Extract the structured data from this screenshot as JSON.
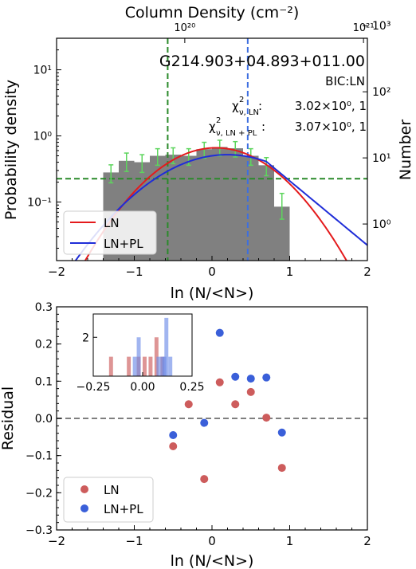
{
  "chart_data": [
    {
      "type": "bar",
      "panel": "top",
      "top_axis_label": "Column Density (cm⁻²)",
      "top_ticks": [
        "10²⁰",
        "10²¹"
      ],
      "xlabel": "ln (N/<N>)",
      "ylabel": "Probability density",
      "ylabel_right": "Number",
      "xlim": [
        -2,
        2
      ],
      "ylim_log": [
        0.013,
        30
      ],
      "x_ticks": [
        -2,
        -1,
        0,
        1,
        2
      ],
      "y_ticks": [
        "10⁻¹",
        "10⁰",
        "10¹"
      ],
      "y_tick_values": [
        0.1,
        1,
        10
      ],
      "right_ticks": [
        "10⁰",
        "10¹",
        "10²",
        "10³"
      ],
      "right_tick_values": [
        1,
        10,
        100,
        1000
      ],
      "right_scale": 0.0465,
      "annotations": {
        "source": "G214.903+04.893+011.00",
        "bic": "BIC:LN",
        "chi_ln": "3.02×10⁰, 1",
        "chi_lnpl": "3.07×10⁰, 1"
      },
      "histogram": {
        "edges": [
          -1.4,
          -1.2,
          -1.0,
          -0.8,
          -0.6,
          -0.4,
          -0.2,
          0.0,
          0.2,
          0.4,
          0.6,
          0.8,
          1.0
        ],
        "values": [
          0.28,
          0.42,
          0.4,
          0.5,
          0.52,
          0.5,
          0.63,
          0.68,
          0.65,
          0.5,
          0.36,
          0.085
        ],
        "err_lo": [
          0.085,
          0.13,
          0.12,
          0.14,
          0.14,
          0.14,
          0.17,
          0.18,
          0.17,
          0.14,
          0.11,
          0.03
        ],
        "err_hi": [
          0.085,
          0.13,
          0.12,
          0.14,
          0.14,
          0.14,
          0.17,
          0.18,
          0.17,
          0.14,
          0.11,
          0.05
        ]
      },
      "models": [
        {
          "name": "LN",
          "color": "#e41a1c",
          "mu": 0.05,
          "sigma": 0.6,
          "peak": 0.66
        },
        {
          "name": "LN+PL",
          "color": "#1f2dd8",
          "mu": 0.2,
          "sigma": 0.72,
          "peak": 0.52,
          "pl_slope": 0.7
        }
      ],
      "vlines": [
        {
          "x": -0.57,
          "color": "#2a8a2a",
          "style": "dashed"
        },
        {
          "x": 0.46,
          "color": "#3d6fe0",
          "style": "dashed"
        }
      ],
      "hline": {
        "y": 0.225,
        "color": "#2a8a2a",
        "style": "dashed"
      },
      "legend": [
        "LN",
        "LN+PL"
      ],
      "legend_loc": "lower-left"
    },
    {
      "type": "scatter",
      "panel": "bottom",
      "xlabel": "ln (N/<N>)",
      "ylabel": "Residual",
      "xlim": [
        -2,
        2
      ],
      "ylim": [
        -0.3,
        0.3
      ],
      "x_ticks": [
        -2,
        -1,
        0,
        1,
        2
      ],
      "y_ticks": [
        -0.3,
        -0.2,
        -0.1,
        0.0,
        0.1,
        0.2,
        0.3
      ],
      "hline": {
        "y": 0.0,
        "color": "#7f7f7f",
        "style": "dashed"
      },
      "series": [
        {
          "name": "LN",
          "color": "#cd5c5c",
          "x": [
            -0.5,
            -0.3,
            -0.1,
            0.1,
            0.3,
            0.5,
            0.7,
            0.9
          ],
          "y": [
            -0.075,
            0.038,
            -0.163,
            0.097,
            0.038,
            0.071,
            0.002,
            -0.133
          ]
        },
        {
          "name": "LN+PL",
          "color": "#3a5fd9",
          "x": [
            -0.5,
            -0.1,
            0.1,
            0.3,
            0.5,
            0.7,
            0.9
          ],
          "y": [
            -0.045,
            -0.012,
            0.23,
            0.112,
            0.107,
            0.11,
            -0.038
          ]
        }
      ],
      "legend_loc": "lower-left",
      "inset": {
        "type": "histogram",
        "xlim": [
          -0.25,
          0.25
        ],
        "ylim": [
          0,
          3.2
        ],
        "x_ticks": [
          -0.25,
          0.0,
          0.25
        ],
        "x_tick_labels": [
          "−0.25",
          "0.00",
          "0.25"
        ],
        "y_ticks": [
          2
        ],
        "series": [
          {
            "name": "LN",
            "color": "#cd5c5c",
            "bins": [
              [
                -0.17,
                -0.15,
                1
              ],
              [
                -0.08,
                -0.06,
                1
              ],
              [
                -0.03,
                -0.01,
                1
              ],
              [
                0.0,
                0.02,
                1
              ],
              [
                0.03,
                0.05,
                1
              ],
              [
                0.06,
                0.08,
                2
              ],
              [
                0.09,
                0.11,
                1
              ]
            ]
          },
          {
            "name": "LN+PL",
            "color": "#6e8ee8",
            "bins": [
              [
                -0.05,
                -0.03,
                1
              ],
              [
                -0.03,
                -0.01,
                2
              ],
              [
                0.07,
                0.09,
                1
              ],
              [
                0.09,
                0.11,
                1
              ],
              [
                0.1,
                0.12,
                1
              ],
              [
                0.11,
                0.13,
                3
              ],
              [
                0.13,
                0.15,
                1
              ]
            ]
          }
        ]
      }
    }
  ]
}
